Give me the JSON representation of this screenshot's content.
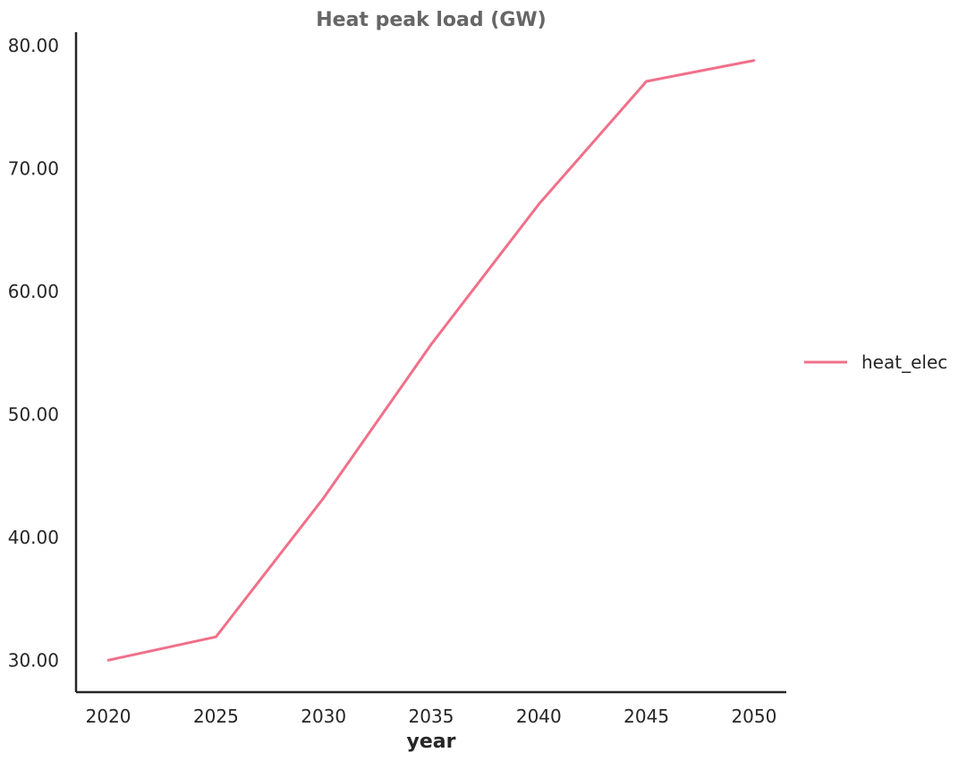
{
  "chart_data": {
    "type": "line",
    "title": "Heat peak load (GW)",
    "xlabel": "year",
    "ylabel": "",
    "x": [
      2020,
      2025,
      2030,
      2035,
      2040,
      2045,
      2050
    ],
    "xticks": [
      "2020",
      "2025",
      "2030",
      "2035",
      "2040",
      "2045",
      "2050"
    ],
    "yticks": [
      "30.00",
      "40.00",
      "50.00",
      "60.00",
      "70.00",
      "80.00"
    ],
    "ytick_values": [
      30,
      40,
      50,
      60,
      70,
      80
    ],
    "xlim": [
      2018.5,
      2051.5
    ],
    "ylim": [
      27.4,
      81.1
    ],
    "grid": false,
    "legend_position": "right",
    "series": [
      {
        "name": "heat_elec",
        "color": "#f0708a",
        "values": [
          30.0,
          31.9,
          43.2,
          55.7,
          67.1,
          77.1,
          78.8
        ]
      }
    ]
  }
}
